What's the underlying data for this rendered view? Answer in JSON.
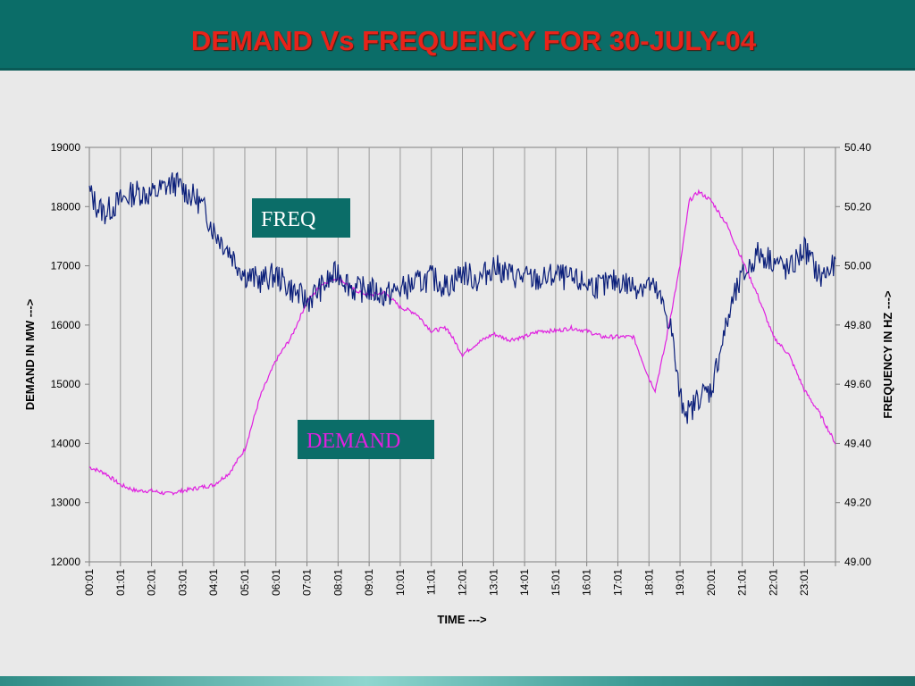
{
  "slide": {
    "title": "DEMAND Vs FREQUENCY FOR 30-JULY-04"
  },
  "chart_data": {
    "type": "line",
    "xlabel": "TIME --->",
    "ylabel_left": "DEMAND IN MW --->",
    "ylabel_right": "FREQUENCY IN HZ --->",
    "ylim_left": [
      12000,
      19000
    ],
    "ylim_right": [
      49.0,
      50.4
    ],
    "yticks_left": [
      "19000",
      "18000",
      "17000",
      "16000",
      "15000",
      "14000",
      "13000",
      "12000"
    ],
    "yticks_right": [
      "50.40",
      "50.20",
      "50.00",
      "49.80",
      "49.60",
      "49.40",
      "49.20",
      "49.00"
    ],
    "x_tick_labels": [
      "00:01",
      "01:01",
      "02:01",
      "03:01",
      "04:01",
      "05:01",
      "06:01",
      "07:01",
      "08:01",
      "09:01",
      "10:01",
      "11:01",
      "12:01",
      "13:01",
      "14:01",
      "15:01",
      "16:01",
      "17:01",
      "18:01",
      "19:01",
      "20:01",
      "21:01",
      "22:01",
      "23:01"
    ],
    "grid": "vertical",
    "series": [
      {
        "name": "DEMAND",
        "axis": "left",
        "color": "#e020e0",
        "x_hours": [
          0,
          0.5,
          1,
          1.5,
          2,
          2.5,
          3,
          3.5,
          4,
          4.5,
          5,
          5.5,
          6,
          6.5,
          7,
          7.5,
          8,
          8.5,
          9,
          9.5,
          10,
          10.5,
          11,
          11.5,
          12,
          12.5,
          13,
          13.5,
          14,
          14.5,
          15,
          15.5,
          16,
          16.5,
          17,
          17.5,
          18,
          18.2,
          18.5,
          19,
          19.3,
          19.6,
          20,
          20.5,
          21,
          21.5,
          22,
          22.5,
          23,
          23.5,
          24
        ],
        "values": [
          13600,
          13500,
          13300,
          13200,
          13200,
          13150,
          13200,
          13250,
          13300,
          13500,
          13900,
          14800,
          15400,
          15800,
          16400,
          16700,
          16800,
          16600,
          16500,
          16550,
          16300,
          16200,
          15900,
          15950,
          15500,
          15700,
          15850,
          15750,
          15800,
          15900,
          15900,
          15950,
          15900,
          15800,
          15800,
          15800,
          15100,
          14900,
          15600,
          17000,
          18100,
          18250,
          18100,
          17700,
          17100,
          16500,
          15800,
          15500,
          14900,
          14500,
          14000
        ]
      },
      {
        "name": "FREQ",
        "axis": "right",
        "color": "#0b1f7a",
        "x_hours": [
          0,
          0.25,
          0.5,
          1,
          1.5,
          2,
          2.5,
          2.75,
          3,
          3.5,
          3.75,
          4,
          4.5,
          5,
          5.5,
          6,
          6.5,
          7,
          7.5,
          8,
          8.5,
          9,
          9.5,
          10,
          10.5,
          11,
          11.5,
          12,
          12.5,
          13,
          13.5,
          14,
          14.5,
          15,
          15.5,
          16,
          16.5,
          17,
          17.5,
          18,
          18.3,
          18.7,
          19,
          19.3,
          19.6,
          20,
          20.3,
          20.7,
          21,
          21.5,
          22,
          22.5,
          23,
          23.5,
          24
        ],
        "values": [
          50.25,
          50.2,
          50.18,
          50.22,
          50.25,
          50.24,
          50.27,
          50.28,
          50.26,
          50.22,
          50.18,
          50.12,
          50.05,
          49.97,
          49.95,
          49.97,
          49.92,
          49.88,
          49.93,
          49.98,
          49.92,
          49.92,
          49.9,
          49.92,
          49.94,
          49.96,
          49.93,
          49.98,
          49.95,
          50.0,
          49.97,
          49.96,
          49.95,
          49.97,
          49.95,
          49.94,
          49.93,
          49.95,
          49.93,
          49.94,
          49.9,
          49.8,
          49.55,
          49.5,
          49.56,
          49.58,
          49.72,
          49.88,
          49.96,
          50.04,
          50.02,
          49.98,
          50.06,
          49.96,
          50.0
        ]
      }
    ],
    "legend_boxes": {
      "freq_label": "FREQ",
      "demand_label": "DEMAND",
      "box_color": "#0b6d68",
      "freq_text_color": "#ffffff",
      "demand_text_color": "#e020e0"
    }
  }
}
